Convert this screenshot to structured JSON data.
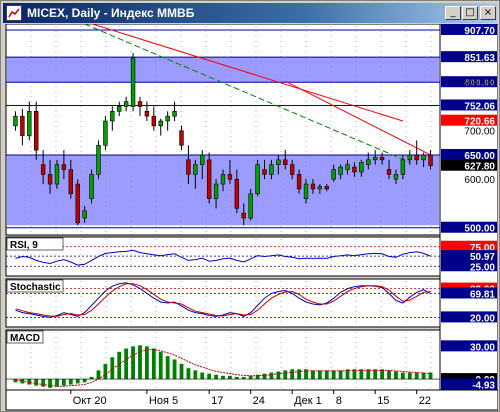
{
  "window": {
    "title": "MICEX, Daily - Индекс ММВБ",
    "buttons": {
      "minimize": "_",
      "maximize": "□",
      "close": "×"
    }
  },
  "colors": {
    "bg": "#ffffff",
    "band": "#9c9cff",
    "bull": "#00a000",
    "bear": "#c00000",
    "hline": "#0000a0",
    "trend_red": "#ff0000",
    "trend_green": "#008000",
    "axis_text": "#000000",
    "label_bg_blue": "#00008b",
    "label_bg_black": "#000000",
    "label_bg_red": "#ff0000"
  },
  "chart_data": {
    "type": "candlestick",
    "main": {
      "ylim": [
        485,
        920
      ],
      "y_ticks": [
        "600.00",
        "700.00",
        "800.00"
      ],
      "levels": [
        {
          "label": "907.70",
          "value": 907.7,
          "style": "blue"
        },
        {
          "label": "851.63",
          "value": 851.63,
          "style": "blue"
        },
        {
          "label": "800.00",
          "value": 800,
          "style": "blue"
        },
        {
          "label": "752.06",
          "value": 752.06,
          "style": "blue"
        },
        {
          "label": "720.66",
          "value": 720.66,
          "style": "red"
        },
        {
          "label": "650.00",
          "value": 650,
          "style": "blue"
        },
        {
          "label": "627.80",
          "value": 627.8,
          "style": "black"
        },
        {
          "label": "500.00",
          "value": 500,
          "style": "blue"
        }
      ],
      "bands": [
        {
          "from": 800,
          "to": 851.63
        },
        {
          "from": 505,
          "to": 650
        }
      ],
      "trendlines": [
        {
          "color": "red",
          "from": [
            11,
            925
          ],
          "to": [
            57,
            720
          ]
        },
        {
          "color": "red",
          "from": [
            40,
            802
          ],
          "to": [
            61,
            650
          ]
        },
        {
          "color": "green",
          "dashed": true,
          "from": [
            11,
            920
          ],
          "to": [
            58,
            635
          ]
        }
      ],
      "candles": [
        [
          1,
          710,
          740,
          700,
          730
        ],
        [
          2,
          730,
          745,
          670,
          690
        ],
        [
          3,
          690,
          760,
          680,
          740
        ],
        [
          4,
          740,
          760,
          640,
          660
        ],
        [
          5,
          630,
          660,
          590,
          610
        ],
        [
          6,
          610,
          640,
          570,
          590
        ],
        [
          7,
          590,
          640,
          580,
          630
        ],
        [
          8,
          630,
          660,
          600,
          620
        ],
        [
          9,
          620,
          640,
          560,
          570
        ],
        [
          10,
          590,
          600,
          505,
          510
        ],
        [
          11,
          520,
          545,
          510,
          535
        ],
        [
          12,
          560,
          620,
          550,
          610
        ],
        [
          13,
          610,
          680,
          600,
          670
        ],
        [
          14,
          670,
          730,
          660,
          720
        ],
        [
          15,
          720,
          750,
          700,
          740
        ],
        [
          16,
          740,
          760,
          730,
          750
        ],
        [
          17,
          750,
          770,
          740,
          760
        ],
        [
          18,
          750,
          860,
          740,
          850
        ],
        [
          19,
          760,
          770,
          730,
          750
        ],
        [
          20,
          740,
          760,
          720,
          730
        ],
        [
          21,
          730,
          750,
          700,
          710
        ],
        [
          22,
          710,
          725,
          690,
          720
        ],
        [
          23,
          720,
          740,
          700,
          730
        ],
        [
          24,
          730,
          760,
          720,
          740
        ],
        [
          25,
          700,
          710,
          660,
          670
        ],
        [
          26,
          640,
          670,
          590,
          610
        ],
        [
          27,
          610,
          640,
          580,
          630
        ],
        [
          28,
          630,
          660,
          600,
          650
        ],
        [
          29,
          640,
          655,
          550,
          560
        ],
        [
          30,
          560,
          600,
          540,
          590
        ],
        [
          31,
          590,
          620,
          575,
          610
        ],
        [
          32,
          610,
          640,
          590,
          600
        ],
        [
          33,
          600,
          620,
          530,
          540
        ],
        [
          34,
          530,
          550,
          505,
          520
        ],
        [
          35,
          520,
          580,
          515,
          570
        ],
        [
          36,
          570,
          640,
          565,
          630
        ],
        [
          37,
          620,
          640,
          600,
          610
        ],
        [
          38,
          610,
          640,
          600,
          630
        ],
        [
          39,
          630,
          650,
          610,
          640
        ],
        [
          40,
          640,
          660,
          620,
          630
        ],
        [
          41,
          630,
          640,
          600,
          610
        ],
        [
          42,
          610,
          620,
          570,
          580
        ],
        [
          43,
          560,
          600,
          550,
          590
        ],
        [
          44,
          590,
          600,
          570,
          580
        ],
        [
          45,
          580,
          590,
          570,
          585
        ],
        [
          46,
          585,
          590,
          575,
          580
        ],
        [
          47,
          600,
          630,
          595,
          620
        ],
        [
          48,
          610,
          630,
          600,
          625
        ],
        [
          49,
          620,
          640,
          610,
          630
        ],
        [
          50,
          625,
          635,
          605,
          615
        ],
        [
          51,
          615,
          640,
          605,
          635
        ],
        [
          52,
          630,
          655,
          620,
          640
        ],
        [
          53,
          640,
          660,
          630,
          645
        ],
        [
          54,
          645,
          655,
          630,
          640
        ],
        [
          55,
          620,
          640,
          600,
          610
        ],
        [
          56,
          600,
          620,
          590,
          610
        ],
        [
          57,
          610,
          650,
          600,
          640
        ],
        [
          58,
          640,
          660,
          630,
          650
        ],
        [
          59,
          650,
          680,
          630,
          640
        ],
        [
          60,
          640,
          655,
          625,
          650
        ],
        [
          61,
          650,
          660,
          620,
          628
        ]
      ]
    },
    "rsi": {
      "label": "RSI, 9",
      "ylim": [
        0,
        100
      ],
      "levels": [
        {
          "label": "75.00",
          "value": 75,
          "style": "red"
        },
        {
          "label": "50.97",
          "value": 50.97,
          "style": "blue"
        },
        {
          "label": "25.00",
          "value": 25,
          "style": "blue"
        }
      ],
      "values": [
        45,
        50,
        48,
        40,
        35,
        32,
        38,
        42,
        36,
        28,
        30,
        40,
        50,
        58,
        60,
        62,
        63,
        66,
        60,
        57,
        54,
        52,
        55,
        57,
        48,
        40,
        42,
        46,
        38,
        40,
        44,
        46,
        40,
        36,
        44,
        52,
        50,
        52,
        54,
        50,
        48,
        44,
        46,
        45,
        46,
        45,
        50,
        52,
        54,
        52,
        55,
        57,
        58,
        57,
        50,
        48,
        56,
        60,
        62,
        58,
        50.97
      ]
    },
    "stochastic": {
      "label": "Stochastic",
      "ylim": [
        0,
        100
      ],
      "levels": [
        {
          "label": "80.00",
          "value": 80,
          "style": "red"
        },
        {
          "label": "69.81",
          "value": 69.81,
          "style": "blue"
        },
        {
          "label": "20.00",
          "value": 20,
          "style": "blue"
        }
      ],
      "main": [
        35,
        30,
        28,
        25,
        22,
        20,
        24,
        30,
        26,
        22,
        30,
        45,
        60,
        75,
        85,
        90,
        92,
        88,
        80,
        70,
        60,
        52,
        50,
        52,
        44,
        35,
        30,
        28,
        24,
        22,
        25,
        30,
        28,
        22,
        30,
        45,
        60,
        70,
        74,
        76,
        70,
        60,
        52,
        48,
        46,
        50,
        60,
        72,
        80,
        84,
        86,
        86,
        85,
        82,
        70,
        55,
        50,
        62,
        72,
        78,
        69.81
      ],
      "signal": [
        38,
        34,
        30,
        28,
        25,
        23,
        22,
        26,
        28,
        25,
        26,
        35,
        48,
        62,
        75,
        84,
        90,
        90,
        86,
        78,
        68,
        58,
        52,
        50,
        48,
        40,
        33,
        30,
        27,
        24,
        23,
        26,
        28,
        25,
        26,
        35,
        48,
        60,
        68,
        73,
        74,
        68,
        58,
        52,
        48,
        48,
        54,
        64,
        74,
        80,
        84,
        86,
        86,
        84,
        77,
        64,
        54,
        56,
        64,
        72,
        74
      ]
    },
    "macd": {
      "label": "MACD",
      "ylim": [
        -10,
        45
      ],
      "levels": [
        {
          "label": "30.00",
          "value": 30,
          "style": "blue"
        },
        {
          "label": "0.00",
          "value": 0,
          "style": "black"
        },
        {
          "label": "-4.93",
          "value": -4.93,
          "style": "blue"
        }
      ],
      "histogram": [
        -3,
        -4,
        -5,
        -6,
        -7,
        -8,
        -7,
        -6,
        -5,
        -4,
        -3,
        2,
        8,
        14,
        20,
        25,
        28,
        30,
        31,
        30,
        28,
        25,
        21,
        18,
        14,
        10,
        8,
        6,
        5,
        4,
        3,
        3,
        2,
        2,
        3,
        4,
        5,
        6,
        7,
        8,
        9,
        9,
        9,
        8,
        8,
        8,
        8,
        8,
        9,
        9,
        9,
        9,
        9,
        9,
        8,
        7,
        6,
        6,
        6,
        6,
        6
      ],
      "signal": [
        -1,
        -2,
        -3,
        -4,
        -5,
        -6,
        -6.5,
        -6.5,
        -6,
        -5.5,
        -5,
        -3,
        0,
        4,
        9,
        14,
        18,
        22,
        25,
        27,
        27,
        26,
        24,
        22,
        19,
        16,
        13,
        11,
        9,
        7,
        6,
        5,
        4,
        3.5,
        3,
        3,
        3.5,
        4,
        5,
        5.5,
        6,
        7,
        7.5,
        7.5,
        7.5,
        7.5,
        7.5,
        7.5,
        7.5,
        8,
        8,
        8,
        8,
        8,
        8,
        7.5,
        7,
        6.5,
        6,
        5.5,
        5
      ]
    },
    "x_labels": [
      {
        "label": "Окт 20",
        "index": 9
      },
      {
        "label": "Ноя 5",
        "index": 20
      },
      {
        "label": "17",
        "index": 29
      },
      {
        "label": "24",
        "index": 35
      },
      {
        "label": "Дек 1",
        "index": 41
      },
      {
        "label": "8",
        "index": 47
      },
      {
        "label": "15",
        "index": 53
      },
      {
        "label": "22",
        "index": 59
      }
    ]
  }
}
